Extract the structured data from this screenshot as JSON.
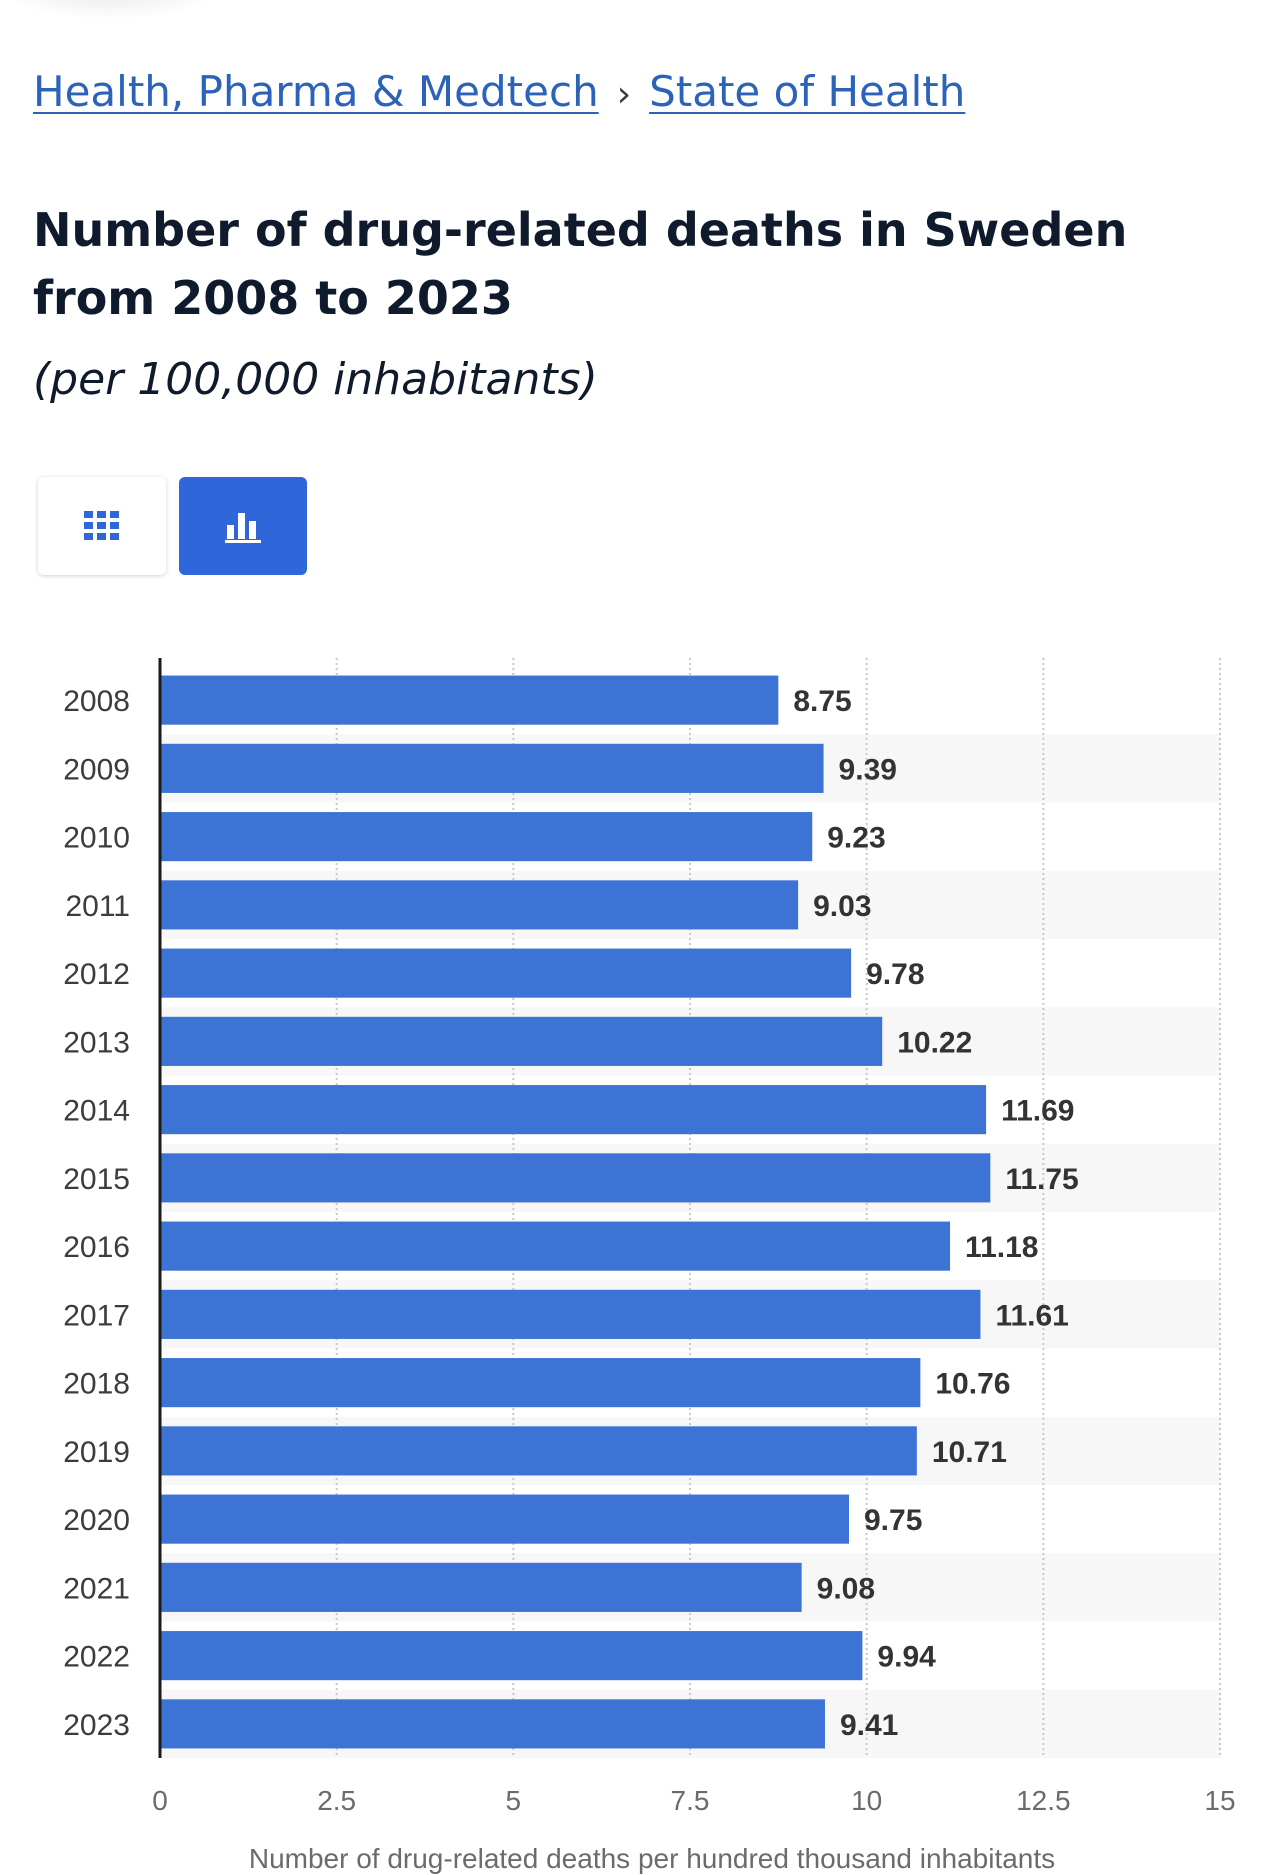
{
  "breadcrumb": {
    "items": [
      {
        "label": "Health, Pharma & Medtech"
      },
      {
        "label": "State of Health"
      }
    ],
    "separator": "›"
  },
  "header": {
    "title": "Number of drug-related deaths in Sweden from 2008 to 2023",
    "subtitle": "(per 100,000 inhabitants)"
  },
  "view_toggle": {
    "table_icon": "grid-icon",
    "chart_icon": "bar-chart-icon",
    "active": "chart",
    "active_color": "#2f66d9",
    "icon_color": "#2f66d9"
  },
  "chart_data": {
    "type": "bar",
    "orientation": "horizontal",
    "categories": [
      "2008",
      "2009",
      "2010",
      "2011",
      "2012",
      "2013",
      "2014",
      "2015",
      "2016",
      "2017",
      "2018",
      "2019",
      "2020",
      "2021",
      "2022",
      "2023"
    ],
    "values": [
      8.75,
      9.39,
      9.23,
      9.03,
      9.78,
      10.22,
      11.69,
      11.75,
      11.18,
      11.61,
      10.76,
      10.71,
      9.75,
      9.08,
      9.94,
      9.41
    ],
    "value_labels": [
      "8.75",
      "9.39",
      "9.23",
      "9.03",
      "9.78",
      "10.22",
      "11.69",
      "11.75",
      "11.18",
      "11.61",
      "10.76",
      "10.71",
      "9.75",
      "9.08",
      "9.94",
      "9.41"
    ],
    "xlabel": "Number of drug-related deaths per hundred thousand inhabitants",
    "xlim": [
      0,
      15
    ],
    "ticks": [
      0,
      2.5,
      5,
      7.5,
      10,
      12.5,
      15
    ],
    "tick_labels": [
      "0",
      "2.5",
      "5",
      "7.5",
      "10",
      "12.5",
      "15"
    ],
    "grid": true,
    "bar_color": "#3e73d6",
    "alt_row_color": "#f7f7f7"
  }
}
